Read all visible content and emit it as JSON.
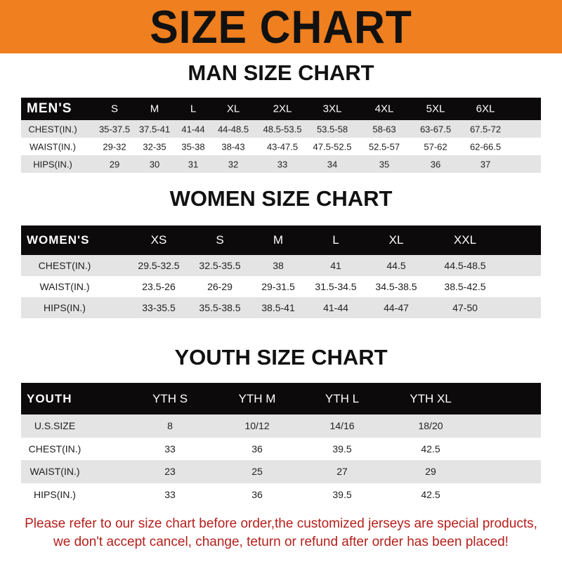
{
  "banner_title": "SIZE CHART",
  "men": {
    "title": "MAN SIZE CHART",
    "header": [
      "MEN'S",
      "S",
      "M",
      "L",
      "XL",
      "2XL",
      "3XL",
      "4XL",
      "5XL",
      "6XL"
    ],
    "rows": [
      [
        "CHEST(IN.)",
        "35-37.5",
        "37.5-41",
        "41-44",
        "44-48.5",
        "48.5-53.5",
        "53.5-58",
        "58-63",
        "63-67.5",
        "67.5-72"
      ],
      [
        "WAIST(IN.)",
        "29-32",
        "32-35",
        "35-38",
        "38-43",
        "43-47.5",
        "47.5-52.5",
        "52.5-57",
        "57-62",
        "62-66.5"
      ],
      [
        "HIPS(IN.)",
        "29",
        "30",
        "31",
        "32",
        "33",
        "34",
        "35",
        "36",
        "37"
      ]
    ]
  },
  "women": {
    "title": "WOMEN SIZE CHART",
    "header": [
      "WOMEN'S",
      "XS",
      "S",
      "M",
      "L",
      "XL",
      "XXL"
    ],
    "rows": [
      [
        "CHEST(IN.)",
        "29.5-32.5",
        "32.5-35.5",
        "38",
        "41",
        "44.5",
        "44.5-48.5"
      ],
      [
        "WAIST(IN.)",
        "23.5-26",
        "26-29",
        "29-31.5",
        "31.5-34.5",
        "34.5-38.5",
        "38.5-42.5"
      ],
      [
        "HIPS(IN.)",
        "33-35.5",
        "35.5-38.5",
        "38.5-41",
        "41-44",
        "44-47",
        "47-50"
      ]
    ]
  },
  "youth": {
    "title": "YOUTH SIZE CHART",
    "header": [
      "YOUTH",
      "YTH S",
      "YTH M",
      "YTH L",
      "YTH XL"
    ],
    "rows": [
      [
        "U.S.SIZE",
        "8",
        "10/12",
        "14/16",
        "18/20"
      ],
      [
        "CHEST(IN.)",
        "33",
        "36",
        "39.5",
        "42.5"
      ],
      [
        "WAIST(IN.)",
        "23",
        "25",
        "27",
        "29"
      ],
      [
        "HIPS(IN.)",
        "33",
        "36",
        "39.5",
        "42.5"
      ]
    ]
  },
  "notice": {
    "line1": "Please refer to our size chart before order,the customized jerseys are special products,",
    "line2": "we don't accept cancel, change, teturn or refund after order has been placed!"
  },
  "colors": {
    "banner": "#ef7f1f",
    "header_row": "#0c0a0a",
    "stripe": "#e4e4e4",
    "notice": "#b5201c"
  }
}
